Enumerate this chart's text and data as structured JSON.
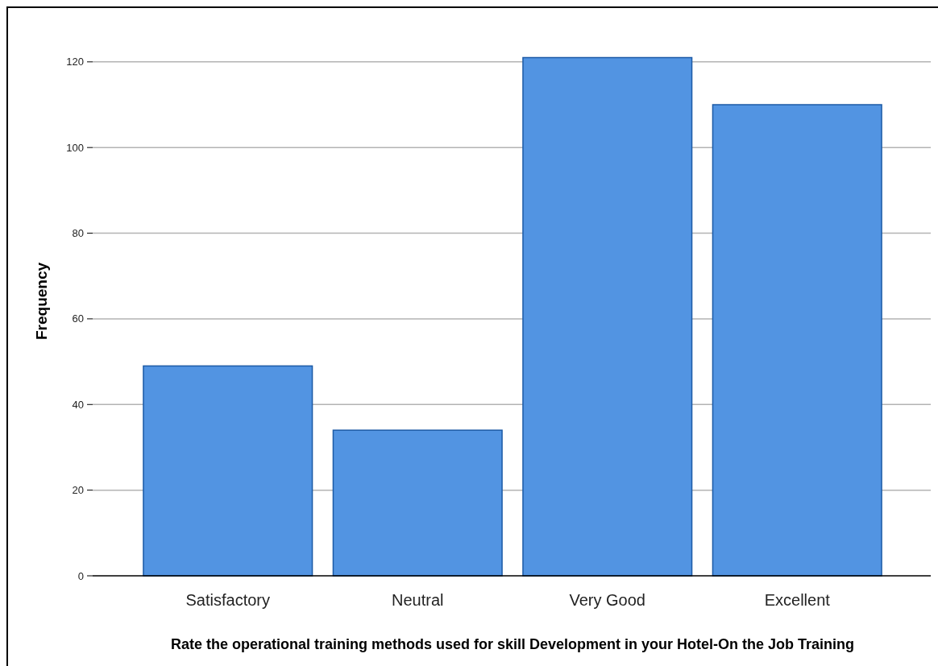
{
  "chart_data": {
    "type": "bar",
    "xlabel": "Rate the operational training methods used for skill Development in your Hotel-On the Job Training",
    "ylabel": "Frequency",
    "categories": [
      "Satisfactory",
      "Neutral",
      "Very Good",
      "Excellent"
    ],
    "values": [
      49,
      34,
      121,
      110
    ],
    "color": "#5294e2",
    "ylim": [
      0,
      132
    ],
    "yticks": [
      0,
      20,
      40,
      60,
      80,
      100,
      120
    ],
    "grid": "y"
  }
}
